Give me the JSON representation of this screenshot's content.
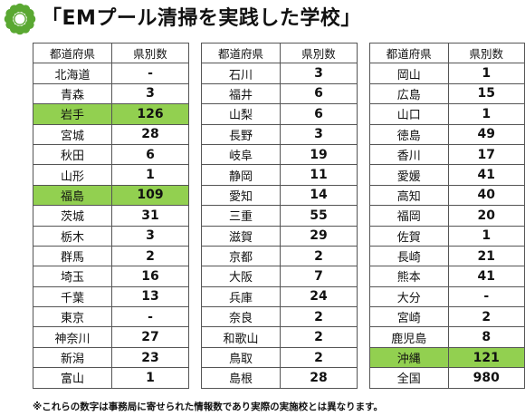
{
  "title": "「EMプール清掃を実践した学校」",
  "header": {
    "prefecture": "都道府県",
    "count": "県別数"
  },
  "colors": {
    "highlight": "#92d050",
    "logo": "#5aa832"
  },
  "tables": [
    [
      {
        "pref": "北海道",
        "count": "-",
        "highlight": false
      },
      {
        "pref": "青森",
        "count": "3",
        "highlight": false
      },
      {
        "pref": "岩手",
        "count": "126",
        "highlight": true
      },
      {
        "pref": "宮城",
        "count": "28",
        "highlight": false
      },
      {
        "pref": "秋田",
        "count": "6",
        "highlight": false
      },
      {
        "pref": "山形",
        "count": "1",
        "highlight": false
      },
      {
        "pref": "福島",
        "count": "109",
        "highlight": true
      },
      {
        "pref": "茨城",
        "count": "31",
        "highlight": false
      },
      {
        "pref": "栃木",
        "count": "3",
        "highlight": false
      },
      {
        "pref": "群馬",
        "count": "2",
        "highlight": false
      },
      {
        "pref": "埼玉",
        "count": "16",
        "highlight": false
      },
      {
        "pref": "千葉",
        "count": "13",
        "highlight": false
      },
      {
        "pref": "東京",
        "count": "-",
        "highlight": false
      },
      {
        "pref": "神奈川",
        "count": "27",
        "highlight": false
      },
      {
        "pref": "新潟",
        "count": "23",
        "highlight": false
      },
      {
        "pref": "富山",
        "count": "1",
        "highlight": false
      }
    ],
    [
      {
        "pref": "石川",
        "count": "3",
        "highlight": false
      },
      {
        "pref": "福井",
        "count": "6",
        "highlight": false
      },
      {
        "pref": "山梨",
        "count": "6",
        "highlight": false
      },
      {
        "pref": "長野",
        "count": "3",
        "highlight": false
      },
      {
        "pref": "岐阜",
        "count": "19",
        "highlight": false
      },
      {
        "pref": "静岡",
        "count": "11",
        "highlight": false
      },
      {
        "pref": "愛知",
        "count": "14",
        "highlight": false
      },
      {
        "pref": "三重",
        "count": "55",
        "highlight": false
      },
      {
        "pref": "滋賀",
        "count": "29",
        "highlight": false
      },
      {
        "pref": "京都",
        "count": "2",
        "highlight": false
      },
      {
        "pref": "大阪",
        "count": "7",
        "highlight": false
      },
      {
        "pref": "兵庫",
        "count": "24",
        "highlight": false
      },
      {
        "pref": "奈良",
        "count": "2",
        "highlight": false
      },
      {
        "pref": "和歌山",
        "count": "2",
        "highlight": false
      },
      {
        "pref": "鳥取",
        "count": "2",
        "highlight": false
      },
      {
        "pref": "島根",
        "count": "28",
        "highlight": false
      }
    ],
    [
      {
        "pref": "岡山",
        "count": "1",
        "highlight": false
      },
      {
        "pref": "広島",
        "count": "15",
        "highlight": false
      },
      {
        "pref": "山口",
        "count": "1",
        "highlight": false
      },
      {
        "pref": "徳島",
        "count": "49",
        "highlight": false
      },
      {
        "pref": "香川",
        "count": "17",
        "highlight": false
      },
      {
        "pref": "愛媛",
        "count": "41",
        "highlight": false
      },
      {
        "pref": "高知",
        "count": "40",
        "highlight": false
      },
      {
        "pref": "福岡",
        "count": "20",
        "highlight": false
      },
      {
        "pref": "佐賀",
        "count": "1",
        "highlight": false
      },
      {
        "pref": "長崎",
        "count": "21",
        "highlight": false
      },
      {
        "pref": "熊本",
        "count": "41",
        "highlight": false
      },
      {
        "pref": "大分",
        "count": "-",
        "highlight": false
      },
      {
        "pref": "宮崎",
        "count": "2",
        "highlight": false
      },
      {
        "pref": "鹿児島",
        "count": "8",
        "highlight": false
      },
      {
        "pref": "沖縄",
        "count": "121",
        "highlight": true
      },
      {
        "pref": "全国",
        "count": "980",
        "highlight": false
      }
    ]
  ],
  "footnote": "※これらの数字は事務局に寄せられた情報数であり実際の実施校とは異なります。"
}
